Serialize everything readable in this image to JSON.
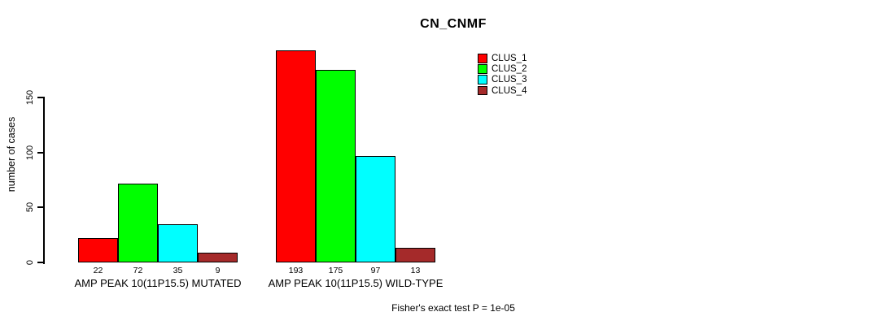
{
  "chart_data": {
    "type": "bar",
    "title": "CN_CNMF",
    "ylabel": "number of cases",
    "xlabel": "",
    "ylim": [
      0,
      193
    ],
    "yticks": [
      0,
      50,
      100,
      150
    ],
    "grid": false,
    "legend_position": "top-right",
    "bar_border_color": "#000000",
    "categories": [
      "AMP PEAK 10(11P15.5) MUTATED",
      "AMP PEAK 10(11P15.5) WILD-TYPE"
    ],
    "series": [
      {
        "name": "CLUS_1",
        "color": "#FF0000",
        "values": [
          22,
          193
        ]
      },
      {
        "name": "CLUS_2",
        "color": "#00FF00",
        "values": [
          72,
          175
        ]
      },
      {
        "name": "CLUS_3",
        "color": "#00FFFF",
        "values": [
          35,
          97
        ]
      },
      {
        "name": "CLUS_4",
        "color": "#A52A2A",
        "values": [
          9,
          13
        ]
      }
    ],
    "annotation": "Fisher's exact test P = 1e-05"
  }
}
